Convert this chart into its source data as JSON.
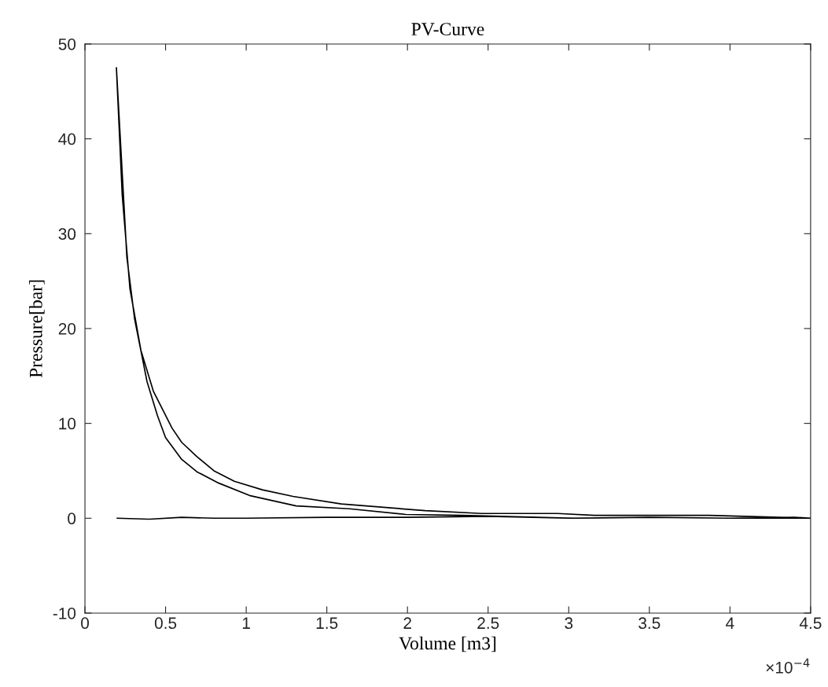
{
  "chart_data": {
    "type": "line",
    "title": "PV-Curve",
    "xlabel": "Volume [m3]",
    "ylabel": "Pressure[bar]",
    "xlim": [
      0,
      4.5
    ],
    "xticks": [
      0,
      0.5,
      1,
      1.5,
      2,
      2.5,
      3,
      3.5,
      4,
      4.5
    ],
    "ylim": [
      -10,
      50
    ],
    "yticks": [
      -10,
      0,
      10,
      20,
      30,
      40,
      50
    ],
    "grid": false,
    "marker": "none",
    "line_style": "solid",
    "annotations": [
      "×10$^{−4}$"
    ],
    "series": [
      {
        "color": "#000000",
        "x": [
          0.2,
          0.4,
          0.6,
          0.8,
          1.0,
          1.5,
          2.0,
          2.5,
          3.0,
          3.5,
          4.0,
          4.4,
          4.5,
          3.87,
          3.16,
          2.93,
          2.46,
          2.11,
          1.59,
          1.29,
          1.1,
          0.926,
          0.8,
          0.694,
          0.6,
          0.54,
          0.424,
          0.347,
          0.279,
          0.231,
          0.195,
          0.26,
          0.308,
          0.385,
          0.45,
          0.5,
          0.6,
          0.694,
          0.83,
          1.02,
          1.31,
          1.64,
          1.99,
          2.34,
          3.04,
          3.5,
          4.0,
          4.5
        ],
        "values": [
          0,
          -0.1,
          0.1,
          0,
          0,
          0.1,
          0.1,
          0.2,
          0,
          0.1,
          0,
          0.1,
          0,
          0.3,
          0.3,
          0.5,
          0.5,
          0.8,
          1.5,
          2.3,
          3.0,
          3.9,
          5.0,
          6.5,
          8.0,
          9.5,
          13.4,
          17.7,
          24.2,
          34.1,
          47.5,
          27.5,
          21,
          14.4,
          10.8,
          8.5,
          6.2,
          4.9,
          3.7,
          2.4,
          1.3,
          1.0,
          0.4,
          0.3,
          0,
          0.1,
          0,
          0
        ]
      }
    ]
  }
}
